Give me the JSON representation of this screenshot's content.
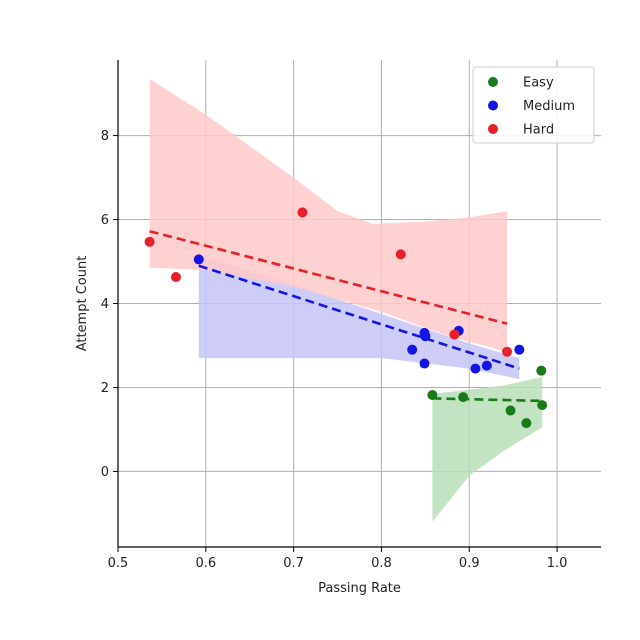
{
  "chart_data": {
    "type": "scatter",
    "title": "",
    "xlabel": "Passing Rate",
    "ylabel": "Attempt Count",
    "xlim": [
      0.5,
      1.05
    ],
    "ylim": [
      -1.8,
      9.8
    ],
    "xticks": [
      0.5,
      0.6,
      0.7,
      0.8,
      0.9,
      1.0
    ],
    "xtick_labels": [
      "0.5",
      "0.6",
      "0.7",
      "0.8",
      "0.9",
      "1.0"
    ],
    "yticks": [
      0,
      2,
      4,
      6,
      8
    ],
    "ytick_labels": [
      "0",
      "2",
      "4",
      "6",
      "8"
    ],
    "grid": true,
    "legend_position": "top-right",
    "series": [
      {
        "name": "Easy",
        "color": "#1a7a1a",
        "points": [
          [
            0.858,
            1.82
          ],
          [
            0.893,
            1.77
          ],
          [
            0.947,
            1.45
          ],
          [
            0.965,
            1.15
          ],
          [
            0.982,
            2.4
          ],
          [
            0.983,
            1.58
          ]
        ],
        "fit": [
          [
            0.858,
            1.74
          ],
          [
            0.983,
            1.68
          ]
        ],
        "band_upper": [
          [
            0.858,
            1.85
          ],
          [
            0.9,
            1.95
          ],
          [
            0.94,
            2.05
          ],
          [
            0.983,
            2.25
          ]
        ],
        "band_lower": [
          [
            0.858,
            -1.2
          ],
          [
            0.9,
            -0.1
          ],
          [
            0.94,
            0.5
          ],
          [
            0.983,
            1.05
          ]
        ],
        "band_color": "#b9dfb9"
      },
      {
        "name": "Medium",
        "color": "#1414e6",
        "points": [
          [
            0.592,
            5.05
          ],
          [
            0.835,
            2.9
          ],
          [
            0.849,
            3.3
          ],
          [
            0.849,
            2.57
          ],
          [
            0.85,
            3.22
          ],
          [
            0.888,
            3.35
          ],
          [
            0.907,
            2.45
          ],
          [
            0.92,
            2.52
          ],
          [
            0.957,
            2.9
          ]
        ],
        "fit": [
          [
            0.592,
            4.9
          ],
          [
            0.957,
            2.45
          ]
        ],
        "band_upper": [
          [
            0.592,
            5.15
          ],
          [
            0.7,
            4.45
          ],
          [
            0.8,
            3.75
          ],
          [
            0.9,
            3.05
          ],
          [
            0.957,
            2.7
          ]
        ],
        "band_lower": [
          [
            0.592,
            2.7
          ],
          [
            0.7,
            2.7
          ],
          [
            0.8,
            2.7
          ],
          [
            0.9,
            2.45
          ],
          [
            0.957,
            2.2
          ]
        ],
        "band_color": "#c4c4f7"
      },
      {
        "name": "Hard",
        "color": "#e8202a",
        "points": [
          [
            0.536,
            5.47
          ],
          [
            0.566,
            4.63
          ],
          [
            0.71,
            6.17
          ],
          [
            0.822,
            5.17
          ],
          [
            0.883,
            3.26
          ],
          [
            0.943,
            2.85
          ]
        ],
        "fit": [
          [
            0.536,
            5.72
          ],
          [
            0.943,
            3.52
          ]
        ],
        "band_upper": [
          [
            0.536,
            9.35
          ],
          [
            0.6,
            8.5
          ],
          [
            0.7,
            7.0
          ],
          [
            0.75,
            6.2
          ],
          [
            0.79,
            5.9
          ],
          [
            0.85,
            5.95
          ],
          [
            0.9,
            6.05
          ],
          [
            0.943,
            6.2
          ]
        ],
        "band_lower": [
          [
            0.536,
            4.85
          ],
          [
            0.6,
            4.8
          ],
          [
            0.7,
            4.4
          ],
          [
            0.8,
            3.8
          ],
          [
            0.88,
            3.2
          ],
          [
            0.943,
            2.85
          ]
        ],
        "band_color": "#ffc9c9"
      }
    ]
  }
}
